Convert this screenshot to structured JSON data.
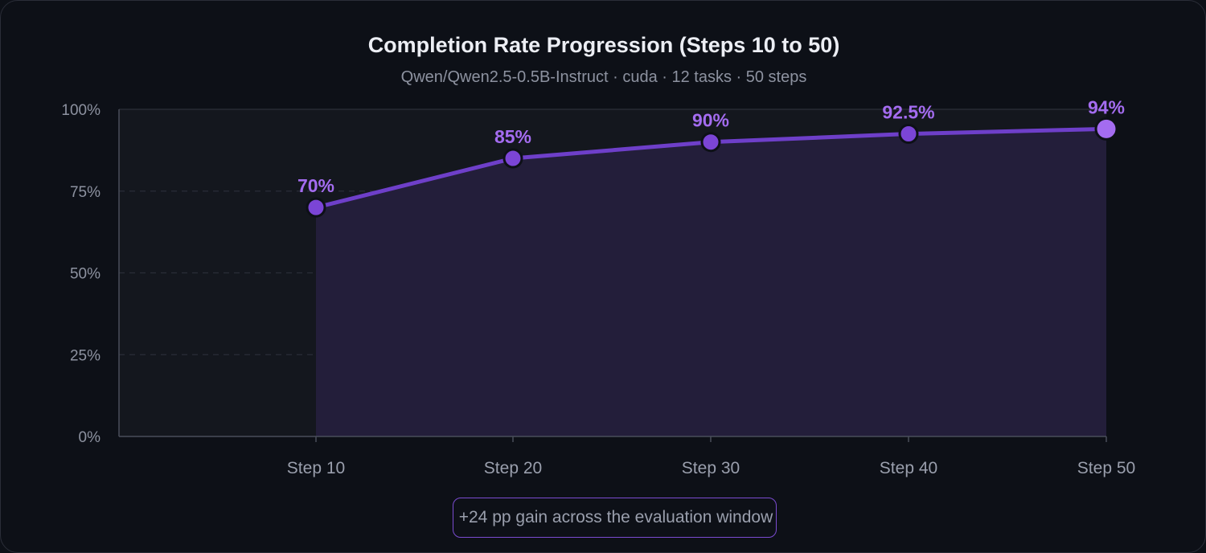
{
  "chart_data": {
    "type": "line",
    "title": "Completion Rate Progression (Steps 10 to 50)",
    "subtitle": "Qwen/Qwen2.5-0.5B-Instruct · cuda · 12 tasks · 50 steps",
    "categories": [
      "Step 10",
      "Step 20",
      "Step 30",
      "Step 40",
      "Step 50"
    ],
    "series": [
      {
        "values": [
          70,
          85,
          90,
          92.5,
          94
        ]
      }
    ],
    "data_labels": [
      "70%",
      "85%",
      "90%",
      "92.5%",
      "94%"
    ],
    "y_ticks": [
      "0%",
      "25%",
      "50%",
      "75%",
      "100%"
    ],
    "ylim": [
      0,
      100
    ],
    "xlabel": "",
    "ylabel": "",
    "grid": true,
    "area_fill": true,
    "annotation": "+24 pp gain across the evaluation window",
    "colors": {
      "line": "#6e3fc9",
      "marker": "#7b45d6",
      "last_marker": "#a46cf0",
      "label": "#a46cf0",
      "area": "#231e3a"
    }
  }
}
